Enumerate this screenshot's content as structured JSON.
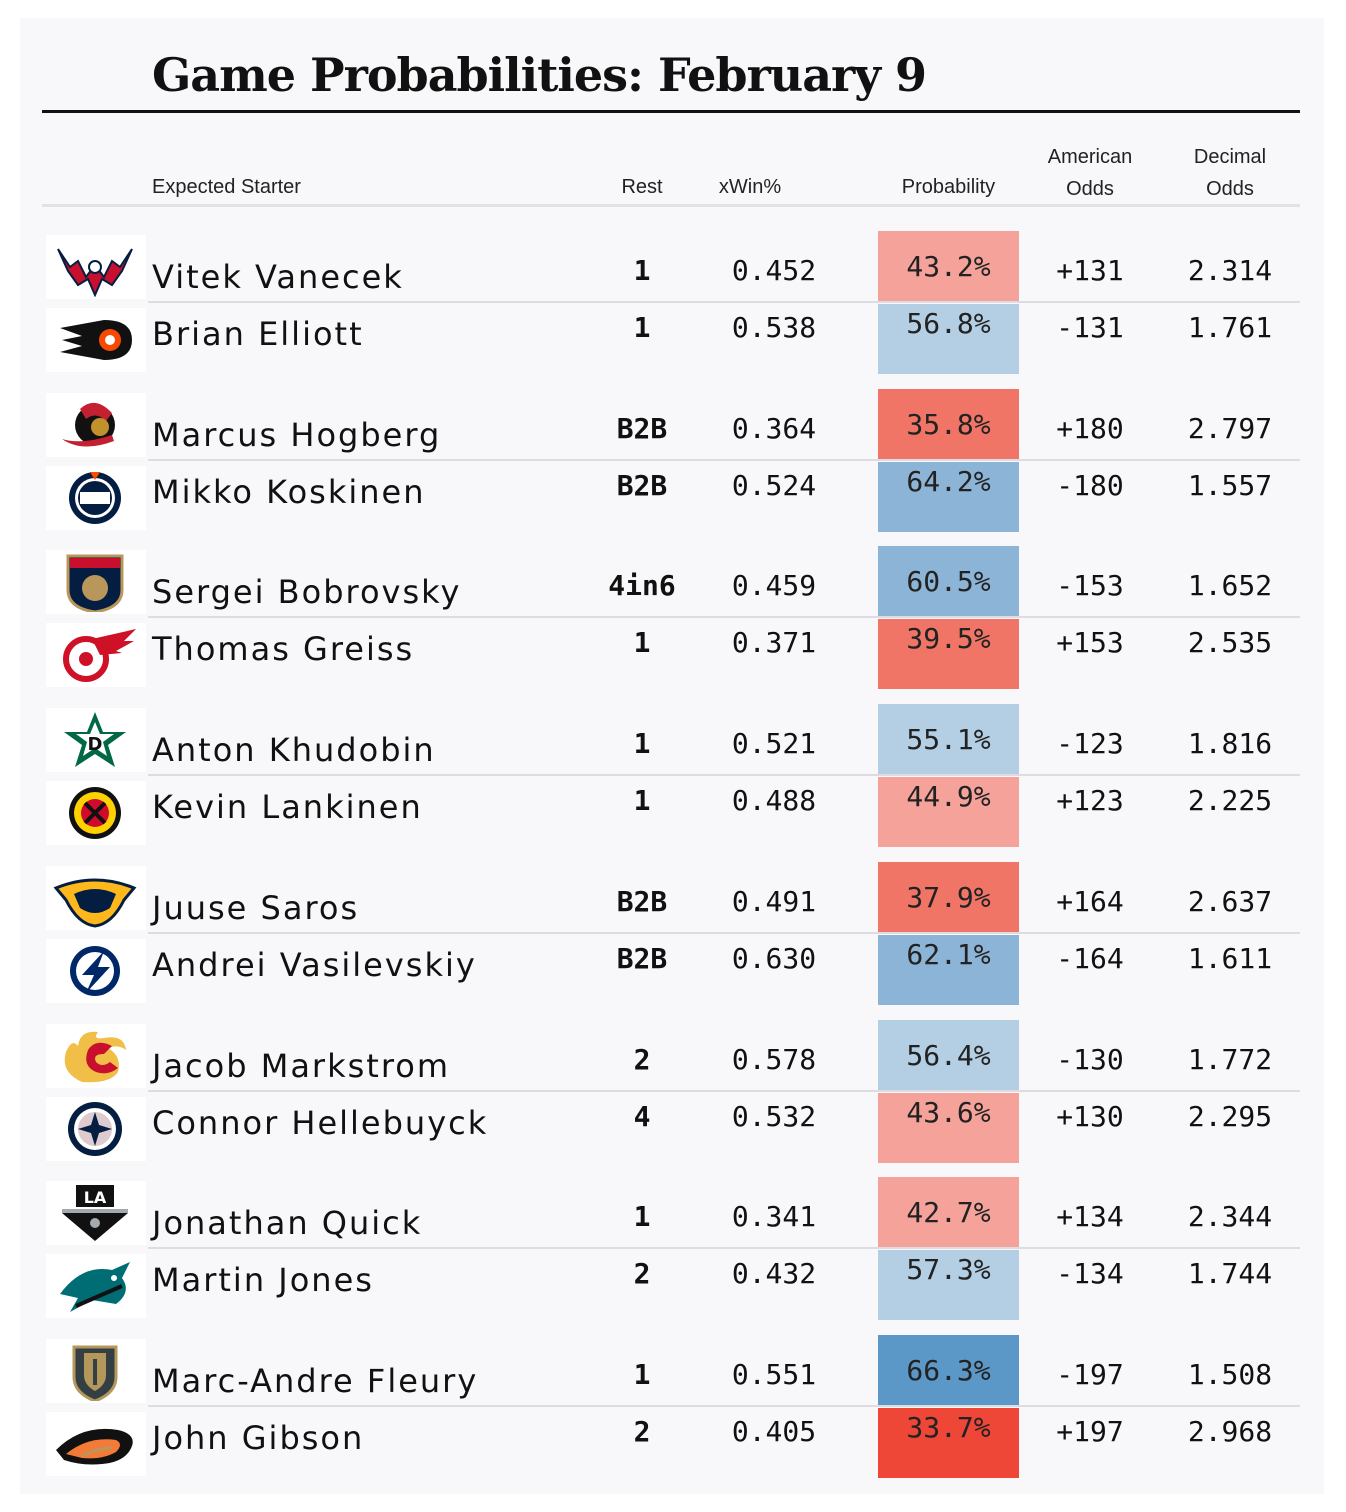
{
  "title": "Game Probabilities: February 9",
  "headers": {
    "starter": "Expected Starter",
    "rest": "Rest",
    "xwin": "xWin%",
    "probability": "Probability",
    "american_1": "American",
    "american_2": "Odds",
    "decimal_1": "Decimal",
    "decimal_2": "Odds"
  },
  "colors": {
    "blue_strong": "#5b97c7",
    "blue_mid": "#8cb4d6",
    "blue_light": "#b4cfe4",
    "red_strong": "#ee4637",
    "red_mid": "#f07567",
    "red_light": "#f5a29a"
  },
  "chart_data": {
    "type": "table",
    "columns": [
      "Expected Starter",
      "Rest",
      "xWin%",
      "Probability",
      "American Odds",
      "Decimal Odds"
    ],
    "games": [
      {
        "rows": [
          {
            "team_logo": "washington-capitals-logo",
            "starter": "Vitek Vanecek",
            "rest": "1",
            "xwin": "0.452",
            "probability": 43.2,
            "probability_label": "43.2%",
            "american": "+131",
            "decimal": "2.314"
          },
          {
            "team_logo": "philadelphia-flyers-logo",
            "starter": "Brian Elliott",
            "rest": "1",
            "xwin": "0.538",
            "probability": 56.8,
            "probability_label": "56.8%",
            "american": "-131",
            "decimal": "1.761"
          }
        ]
      },
      {
        "rows": [
          {
            "team_logo": "ottawa-senators-logo",
            "starter": "Marcus Hogberg",
            "rest": "B2B",
            "xwin": "0.364",
            "probability": 35.8,
            "probability_label": "35.8%",
            "american": "+180",
            "decimal": "2.797"
          },
          {
            "team_logo": "edmonton-oilers-logo",
            "starter": "Mikko Koskinen",
            "rest": "B2B",
            "xwin": "0.524",
            "probability": 64.2,
            "probability_label": "64.2%",
            "american": "-180",
            "decimal": "1.557"
          }
        ]
      },
      {
        "rows": [
          {
            "team_logo": "florida-panthers-logo",
            "starter": "Sergei Bobrovsky",
            "rest": "4in6",
            "xwin": "0.459",
            "probability": 60.5,
            "probability_label": "60.5%",
            "american": "-153",
            "decimal": "1.652"
          },
          {
            "team_logo": "detroit-red-wings-logo",
            "starter": "Thomas Greiss",
            "rest": "1",
            "xwin": "0.371",
            "probability": 39.5,
            "probability_label": "39.5%",
            "american": "+153",
            "decimal": "2.535"
          }
        ]
      },
      {
        "rows": [
          {
            "team_logo": "dallas-stars-logo",
            "starter": "Anton Khudobin",
            "rest": "1",
            "xwin": "0.521",
            "probability": 55.1,
            "probability_label": "55.1%",
            "american": "-123",
            "decimal": "1.816"
          },
          {
            "team_logo": "chicago-blackhawks-logo",
            "starter": "Kevin Lankinen",
            "rest": "1",
            "xwin": "0.488",
            "probability": 44.9,
            "probability_label": "44.9%",
            "american": "+123",
            "decimal": "2.225"
          }
        ]
      },
      {
        "rows": [
          {
            "team_logo": "nashville-predators-logo",
            "starter": "Juuse Saros",
            "rest": "B2B",
            "xwin": "0.491",
            "probability": 37.9,
            "probability_label": "37.9%",
            "american": "+164",
            "decimal": "2.637"
          },
          {
            "team_logo": "tampa-bay-lightning-logo",
            "starter": "Andrei Vasilevskiy",
            "rest": "B2B",
            "xwin": "0.630",
            "probability": 62.1,
            "probability_label": "62.1%",
            "american": "-164",
            "decimal": "1.611"
          }
        ]
      },
      {
        "rows": [
          {
            "team_logo": "calgary-flames-logo",
            "starter": "Jacob Markstrom",
            "rest": "2",
            "xwin": "0.578",
            "probability": 56.4,
            "probability_label": "56.4%",
            "american": "-130",
            "decimal": "1.772"
          },
          {
            "team_logo": "winnipeg-jets-logo",
            "starter": "Connor Hellebuyck",
            "rest": "4",
            "xwin": "0.532",
            "probability": 43.6,
            "probability_label": "43.6%",
            "american": "+130",
            "decimal": "2.295"
          }
        ]
      },
      {
        "rows": [
          {
            "team_logo": "los-angeles-kings-logo",
            "starter": "Jonathan Quick",
            "rest": "1",
            "xwin": "0.341",
            "probability": 42.7,
            "probability_label": "42.7%",
            "american": "+134",
            "decimal": "2.344"
          },
          {
            "team_logo": "san-jose-sharks-logo",
            "starter": "Martin Jones",
            "rest": "2",
            "xwin": "0.432",
            "probability": 57.3,
            "probability_label": "57.3%",
            "american": "-134",
            "decimal": "1.744"
          }
        ]
      },
      {
        "rows": [
          {
            "team_logo": "vegas-golden-knights-logo",
            "starter": "Marc-Andre Fleury",
            "rest": "1",
            "xwin": "0.551",
            "probability": 66.3,
            "probability_label": "66.3%",
            "american": "-197",
            "decimal": "1.508"
          },
          {
            "team_logo": "anaheim-ducks-logo",
            "starter": "John Gibson",
            "rest": "2",
            "xwin": "0.405",
            "probability": 33.7,
            "probability_label": "33.7%",
            "american": "+197",
            "decimal": "2.968"
          }
        ]
      }
    ]
  }
}
